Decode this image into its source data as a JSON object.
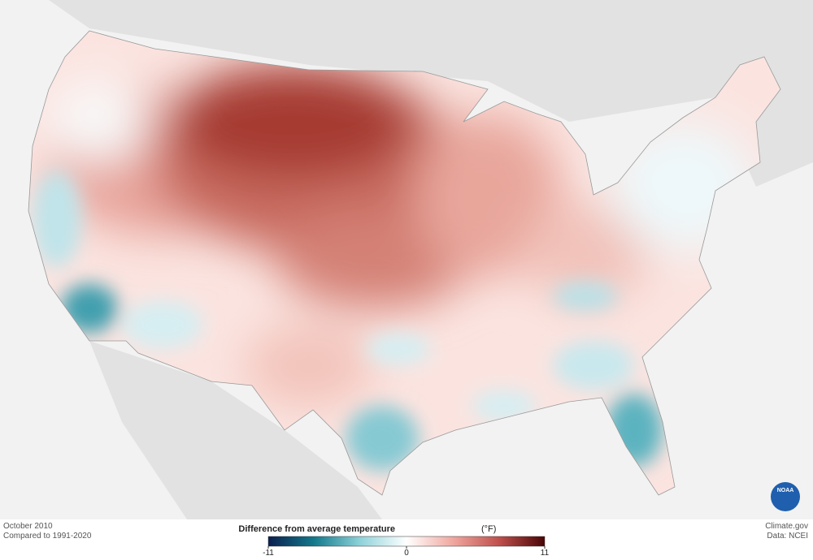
{
  "map": {
    "month": "October 2010",
    "baseline": "Compared to 1991-2020",
    "credit": "Climate.gov",
    "source": "Data: NCEI",
    "logo": "NOAA"
  },
  "legend": {
    "title": "Difference from average temperature",
    "unit": "(°F)",
    "range": [
      -11,
      11
    ],
    "ticks": [
      -11,
      0,
      11
    ],
    "colors": [
      "#0a1f4f",
      "#137a8c",
      "#8fd3da",
      "#ffffff",
      "#f0a8a0",
      "#c0504d",
      "#4a0505"
    ]
  }
}
